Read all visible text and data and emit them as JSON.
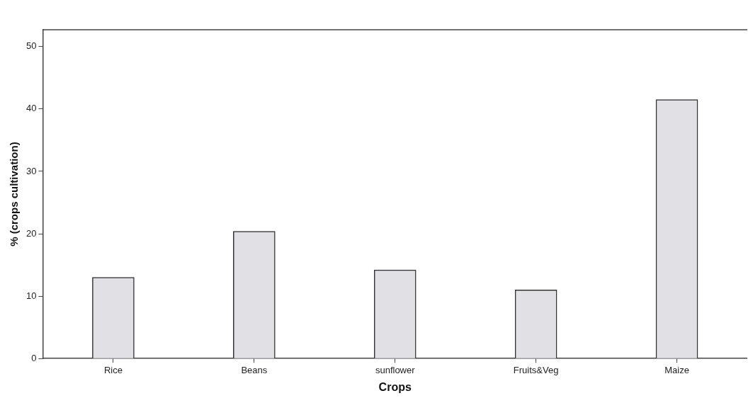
{
  "chart_data": {
    "type": "bar",
    "xlabel": "Crops",
    "ylabel": "% (crops cultivation)",
    "categories": [
      "Rice",
      "Beans",
      "sunflower",
      "Fruits&Veg",
      "Maize"
    ],
    "values": [
      13.0,
      20.4,
      14.2,
      11.0,
      41.5
    ],
    "color": "#e1e0e5",
    "ylim": [
      0,
      52.7
    ],
    "yticks": [
      0,
      10,
      20,
      30,
      40,
      50
    ],
    "grid": false
  }
}
